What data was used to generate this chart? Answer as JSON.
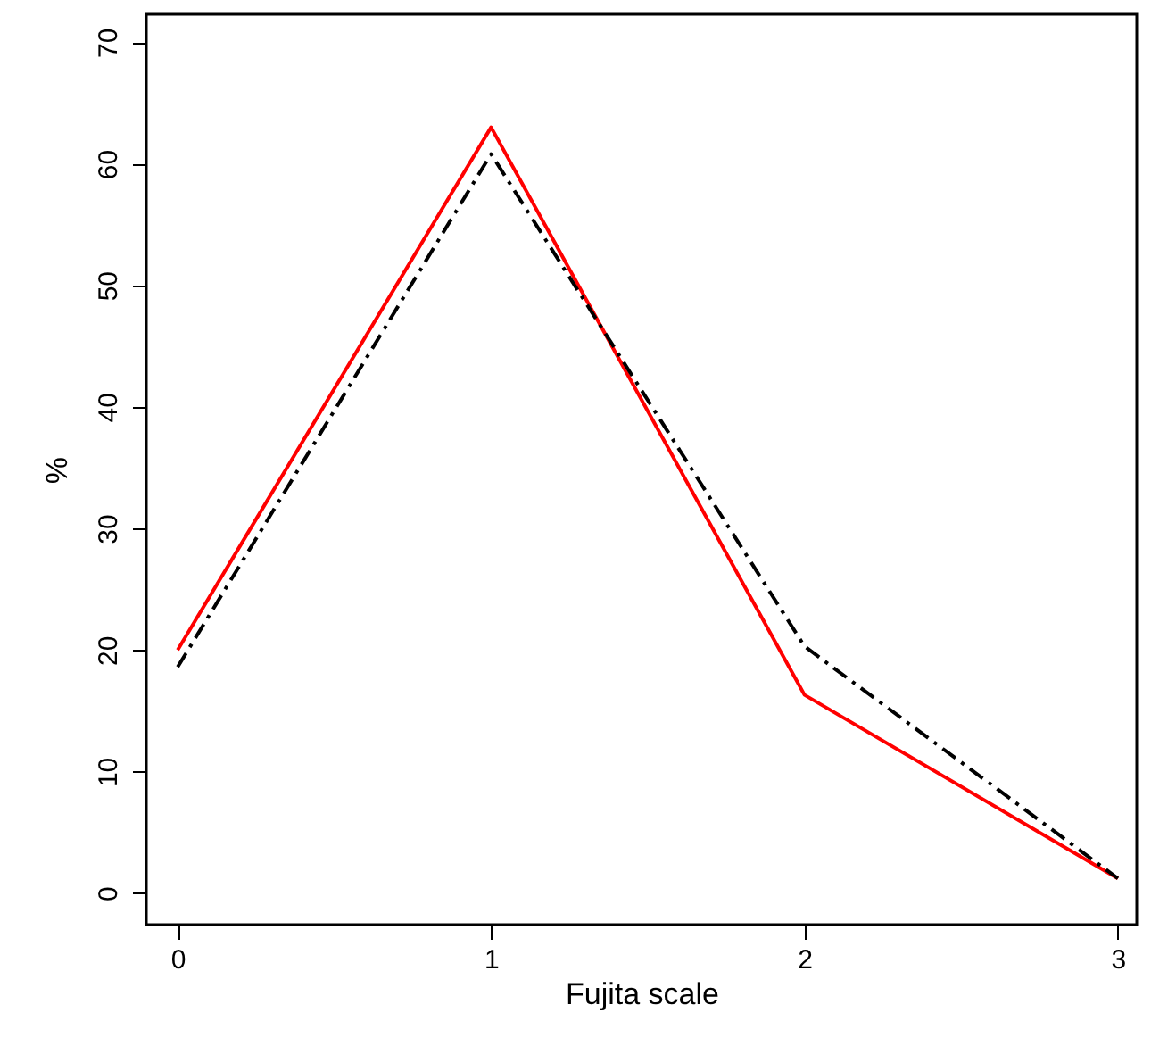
{
  "chart_data": {
    "type": "line",
    "xlabel": "Fujita scale",
    "ylabel": "%",
    "x": [
      0,
      1,
      2,
      3
    ],
    "series": [
      {
        "color": "#ff0000",
        "values": [
          20,
          63,
          16.3,
          1.2
        ],
        "line_style": "solid"
      },
      {
        "color": "#000000",
        "values": [
          18.6,
          60.8,
          20.3,
          1.2
        ],
        "line_style": "dashed"
      }
    ],
    "xlim": [
      -0.1,
      3.06
    ],
    "ylim": [
      -2.6,
      72.3
    ],
    "xticks": [
      0,
      1,
      2,
      3
    ],
    "yticks": [
      0,
      10,
      20,
      30,
      40,
      50,
      60,
      70
    ],
    "grid": false,
    "marker": "none"
  }
}
